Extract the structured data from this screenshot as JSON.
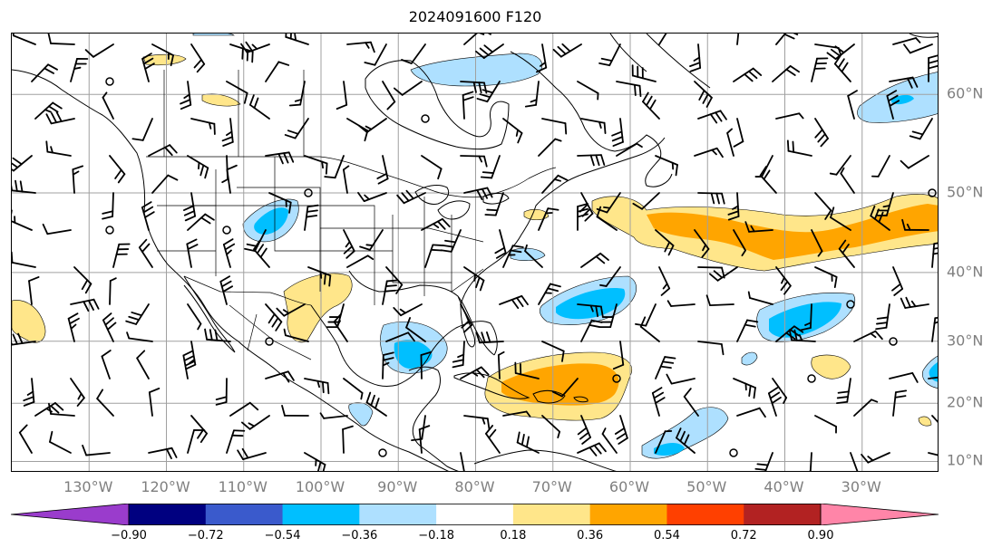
{
  "title": "2024091600 F120",
  "map": {
    "lon_labels": [
      {
        "text": "130°W",
        "lon": -130
      },
      {
        "text": "120°W",
        "lon": -120
      },
      {
        "text": "110°W",
        "lon": -110
      },
      {
        "text": "100°W",
        "lon": -100
      },
      {
        "text": "90°W",
        "lon": -90
      },
      {
        "text": "80°W",
        "lon": -80
      },
      {
        "text": "70°W",
        "lon": -70
      },
      {
        "text": "60°W",
        "lon": -60
      },
      {
        "text": "50°W",
        "lon": -50
      },
      {
        "text": "40°W",
        "lon": -40
      },
      {
        "text": "30°W",
        "lon": -30
      }
    ],
    "lat_labels": [
      {
        "text": "60°N",
        "lat": 60
      },
      {
        "text": "50°N",
        "lat": 50
      },
      {
        "text": "40°N",
        "lat": 40
      },
      {
        "text": "30°N",
        "lat": 30
      },
      {
        "text": "20°N",
        "lat": 20
      },
      {
        "text": "10°N",
        "lat": 10
      }
    ],
    "extent": {
      "lon_min": -140,
      "lon_max": -20,
      "lat_min": 8,
      "lat_max": 65
    },
    "grid": true,
    "gridline_color": "#a0a0a0",
    "coastline_color": "#000000"
  },
  "colorbar": {
    "ticks": [
      "−0.90",
      "−0.72",
      "−0.54",
      "−0.36",
      "−0.18",
      "0.18",
      "0.36",
      "0.54",
      "0.72",
      "0.90"
    ],
    "colors": [
      "#9a3ccc",
      "#000080",
      "#3a5acc",
      "#00bfff",
      "#aee0ff",
      "#ffffff",
      "#ffe68a",
      "#ffa500",
      "#ff4000",
      "#b22222",
      "#ff85a8"
    ],
    "extend": "both"
  },
  "shading": [
    {
      "level": "0.18 to 0.36",
      "color": "#ffe68a"
    },
    {
      "level": "0.36 to 0.54",
      "color": "#ffa500"
    },
    {
      "level": "-0.36 to -0.18",
      "color": "#aee0ff"
    },
    {
      "level": "-0.54 to -0.36",
      "color": "#00bfff"
    }
  ]
}
